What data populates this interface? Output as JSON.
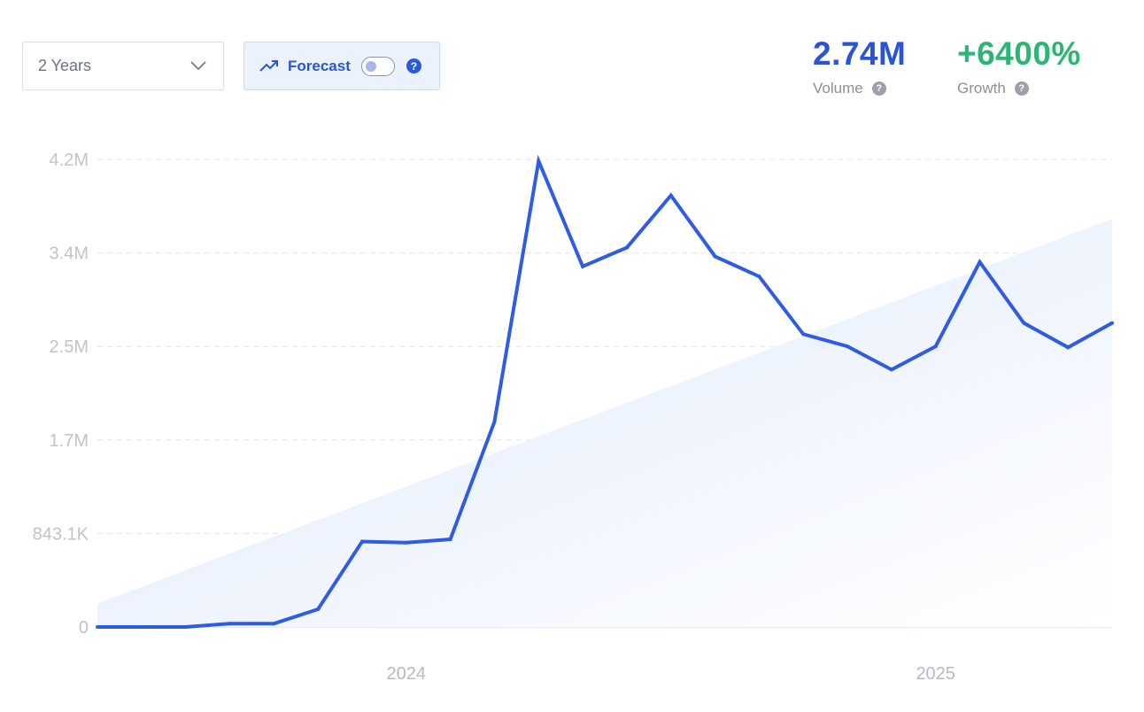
{
  "controls": {
    "range_select": {
      "value": "2 Years"
    },
    "forecast": {
      "label": "Forecast",
      "toggle_on": false,
      "help": "?"
    }
  },
  "metrics": {
    "volume": {
      "value": "2.74M",
      "label": "Volume",
      "help": "?"
    },
    "growth": {
      "value": "+6400%",
      "label": "Growth",
      "help": "?"
    }
  },
  "colors": {
    "line": "#2f5ce0",
    "volume": "#2a54d4",
    "growth": "#2bb673",
    "trend_fill": "#e6eefc",
    "grid": "#e2e5ea"
  },
  "chart_data": {
    "type": "line",
    "x_unit": "month",
    "x": [
      "2023-06",
      "2023-07",
      "2023-08",
      "2023-09",
      "2023-10",
      "2023-11",
      "2023-12",
      "2024-01",
      "2024-02",
      "2024-03",
      "2024-04",
      "2024-05",
      "2024-06",
      "2024-07",
      "2024-08",
      "2024-09",
      "2024-10",
      "2024-11",
      "2024-12",
      "2025-01",
      "2025-02",
      "2025-03",
      "2025-04",
      "2025-05"
    ],
    "series": [
      {
        "values": [
          0,
          0,
          0,
          30000,
          30000,
          160000,
          770000,
          760000,
          790000,
          1850000,
          4200000,
          3250000,
          3420000,
          3890000,
          3340000,
          3160000,
          2640000,
          2530000,
          2320000,
          2530000,
          3290000,
          2740000,
          2520000,
          2740000
        ]
      }
    ],
    "trend": {
      "start": 210000,
      "end": 3680000
    },
    "yticks": [
      "0",
      "843.1K",
      "1.7M",
      "2.5M",
      "3.4M",
      "4.2M"
    ],
    "ytick_values": [
      0,
      843100,
      1686000,
      2529000,
      3372000,
      4215000
    ],
    "ylim": [
      0,
      4215000
    ],
    "xticks": [
      {
        "label": "2024",
        "at": "2024-01"
      },
      {
        "label": "2025",
        "at": "2025-01"
      }
    ],
    "grid": "horizontal dashed"
  }
}
